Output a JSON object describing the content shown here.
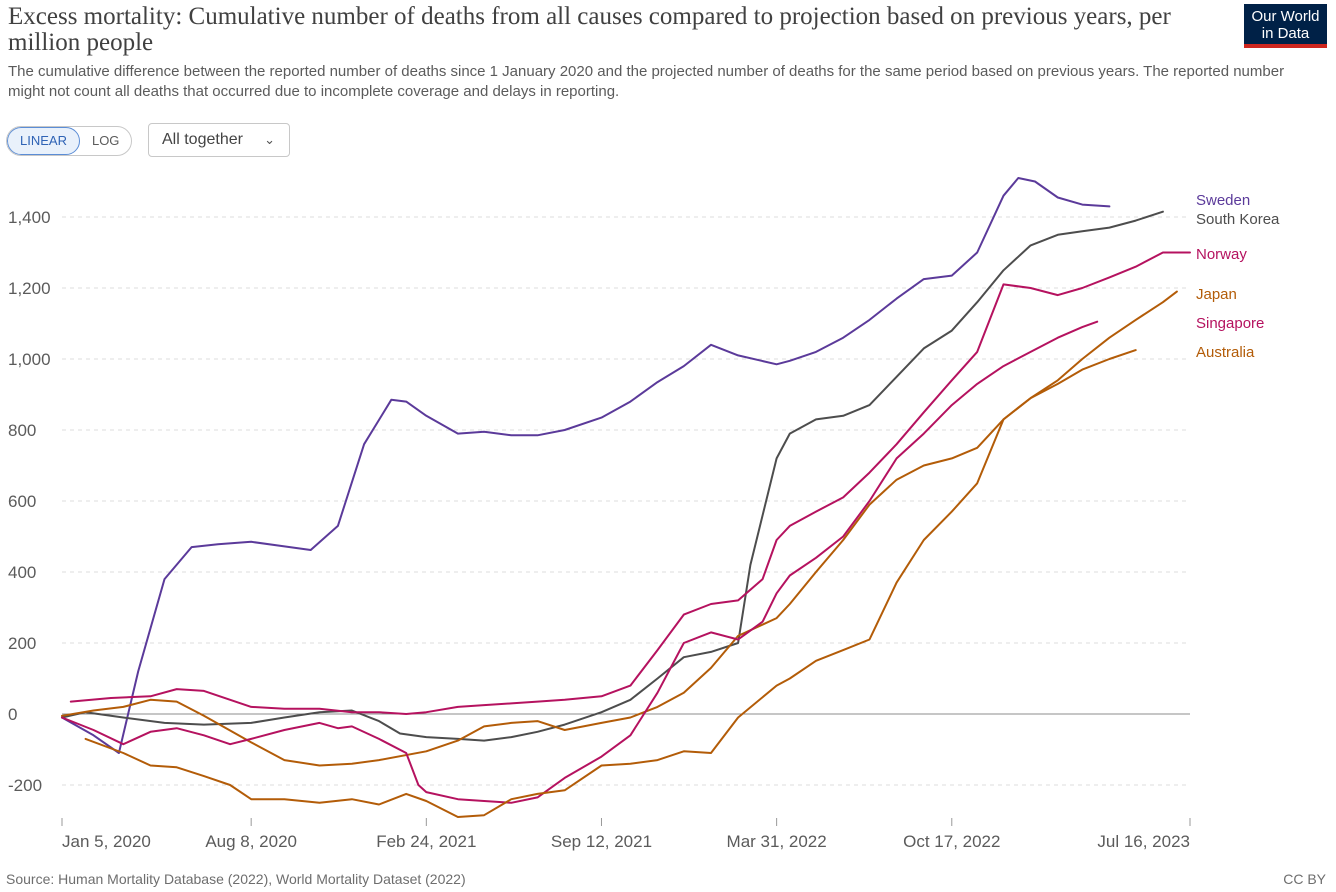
{
  "header": {
    "title": "Excess mortality: Cumulative number of deaths from all causes compared to projection based on previous years, per million people",
    "subtitle": "The cumulative difference between the reported number of deaths since 1 January 2020 and the projected number of deaths for the same period based on previous years. The reported number might not count all deaths that occurred due to incomplete coverage and delays in reporting.",
    "logo_line1": "Our World",
    "logo_line2": "in Data"
  },
  "controls": {
    "linear_label": "LINEAR",
    "log_label": "LOG",
    "dropdown_label": "All together"
  },
  "footer": {
    "source": "Source: Human Mortality Database (2022), World Mortality Dataset (2022)",
    "license": "CC BY"
  },
  "chart_data": {
    "type": "line",
    "x_ticks": [
      "Jan 5, 2020",
      "Aug 8, 2020",
      "Feb 24, 2021",
      "Sep 12, 2021",
      "Mar 31, 2022",
      "Oct 17, 2022",
      "Jul 16, 2023"
    ],
    "y_ticks": [
      -200,
      0,
      200,
      400,
      600,
      800,
      "1,000",
      "1,200",
      "1,400"
    ],
    "ylim": [
      -300,
      1550
    ],
    "xlim": [
      "2020-01-01",
      "2023-07-16"
    ],
    "grid": true,
    "legend_placement": "right, labels at line ends",
    "series": [
      {
        "name": "Sweden",
        "color": "#5b3a9a",
        "points": [
          [
            "2020-01-05",
            -10
          ],
          [
            "2020-02-10",
            -60
          ],
          [
            "2020-03-10",
            -110
          ],
          [
            "2020-04-01",
            120
          ],
          [
            "2020-05-01",
            380
          ],
          [
            "2020-06-01",
            470
          ],
          [
            "2020-07-01",
            478
          ],
          [
            "2020-08-08",
            485
          ],
          [
            "2020-09-15",
            472
          ],
          [
            "2020-10-15",
            462
          ],
          [
            "2020-11-15",
            530
          ],
          [
            "2020-12-15",
            760
          ],
          [
            "2021-01-15",
            885
          ],
          [
            "2021-02-01",
            880
          ],
          [
            "2021-02-24",
            840
          ],
          [
            "2021-04-01",
            790
          ],
          [
            "2021-05-01",
            795
          ],
          [
            "2021-06-01",
            785
          ],
          [
            "2021-07-01",
            785
          ],
          [
            "2021-08-01",
            800
          ],
          [
            "2021-09-12",
            835
          ],
          [
            "2021-10-15",
            880
          ],
          [
            "2021-11-15",
            935
          ],
          [
            "2021-12-15",
            980
          ],
          [
            "2022-01-15",
            1040
          ],
          [
            "2022-02-15",
            1010
          ],
          [
            "2022-03-31",
            985
          ],
          [
            "2022-04-15",
            995
          ],
          [
            "2022-05-15",
            1020
          ],
          [
            "2022-06-15",
            1060
          ],
          [
            "2022-07-15",
            1110
          ],
          [
            "2022-08-15",
            1170
          ],
          [
            "2022-09-15",
            1225
          ],
          [
            "2022-10-17",
            1235
          ],
          [
            "2022-11-15",
            1300
          ],
          [
            "2022-12-15",
            1460
          ],
          [
            "2023-01-01",
            1510
          ],
          [
            "2023-01-20",
            1500
          ],
          [
            "2023-02-15",
            1455
          ],
          [
            "2023-03-15",
            1435
          ],
          [
            "2023-04-15",
            1430
          ]
        ]
      },
      {
        "name": "South Korea",
        "color": "#4d4d4d",
        "points": [
          [
            "2020-01-05",
            -10
          ],
          [
            "2020-02-01",
            5
          ],
          [
            "2020-03-15",
            -10
          ],
          [
            "2020-05-01",
            -25
          ],
          [
            "2020-06-15",
            -30
          ],
          [
            "2020-08-08",
            -25
          ],
          [
            "2020-09-15",
            -10
          ],
          [
            "2020-10-25",
            5
          ],
          [
            "2020-12-01",
            10
          ],
          [
            "2021-01-01",
            -20
          ],
          [
            "2021-01-25",
            -55
          ],
          [
            "2021-02-24",
            -65
          ],
          [
            "2021-04-01",
            -70
          ],
          [
            "2021-05-01",
            -75
          ],
          [
            "2021-06-01",
            -65
          ],
          [
            "2021-07-01",
            -50
          ],
          [
            "2021-08-01",
            -30
          ],
          [
            "2021-09-12",
            5
          ],
          [
            "2021-10-15",
            40
          ],
          [
            "2021-11-15",
            100
          ],
          [
            "2021-12-15",
            160
          ],
          [
            "2022-01-15",
            175
          ],
          [
            "2022-02-15",
            200
          ],
          [
            "2022-03-01",
            420
          ],
          [
            "2022-03-31",
            720
          ],
          [
            "2022-04-15",
            790
          ],
          [
            "2022-05-15",
            830
          ],
          [
            "2022-06-15",
            840
          ],
          [
            "2022-07-15",
            870
          ],
          [
            "2022-08-15",
            950
          ],
          [
            "2022-09-15",
            1030
          ],
          [
            "2022-10-17",
            1080
          ],
          [
            "2022-11-15",
            1160
          ],
          [
            "2022-12-15",
            1250
          ],
          [
            "2023-01-15",
            1320
          ],
          [
            "2023-02-15",
            1350
          ],
          [
            "2023-03-15",
            1360
          ],
          [
            "2023-04-15",
            1370
          ],
          [
            "2023-05-15",
            1390
          ],
          [
            "2023-06-15",
            1415
          ]
        ]
      },
      {
        "name": "Norway",
        "color": "#b5125f",
        "points": [
          [
            "2020-01-15",
            35
          ],
          [
            "2020-03-01",
            45
          ],
          [
            "2020-04-15",
            50
          ],
          [
            "2020-05-15",
            70
          ],
          [
            "2020-06-15",
            65
          ],
          [
            "2020-08-08",
            20
          ],
          [
            "2020-09-15",
            15
          ],
          [
            "2020-10-25",
            15
          ],
          [
            "2020-12-01",
            5
          ],
          [
            "2021-01-01",
            5
          ],
          [
            "2021-02-01",
            0
          ],
          [
            "2021-02-24",
            5
          ],
          [
            "2021-04-01",
            20
          ],
          [
            "2021-05-01",
            25
          ],
          [
            "2021-06-01",
            30
          ],
          [
            "2021-07-01",
            35
          ],
          [
            "2021-08-01",
            40
          ],
          [
            "2021-09-12",
            50
          ],
          [
            "2021-10-15",
            80
          ],
          [
            "2021-11-15",
            180
          ],
          [
            "2021-12-15",
            280
          ],
          [
            "2022-01-15",
            310
          ],
          [
            "2022-02-15",
            320
          ],
          [
            "2022-03-15",
            380
          ],
          [
            "2022-03-31",
            490
          ],
          [
            "2022-04-15",
            530
          ],
          [
            "2022-05-15",
            570
          ],
          [
            "2022-06-15",
            610
          ],
          [
            "2022-07-15",
            680
          ],
          [
            "2022-08-15",
            760
          ],
          [
            "2022-09-15",
            850
          ],
          [
            "2022-10-17",
            940
          ],
          [
            "2022-11-15",
            1020
          ],
          [
            "2022-12-15",
            1210
          ],
          [
            "2023-01-15",
            1200
          ],
          [
            "2023-02-15",
            1180
          ],
          [
            "2023-03-15",
            1200
          ],
          [
            "2023-04-15",
            1230
          ],
          [
            "2023-05-15",
            1260
          ],
          [
            "2023-06-15",
            1300
          ],
          [
            "2023-07-16",
            1300
          ]
        ]
      },
      {
        "name": "Japan",
        "color": "#b35c08",
        "points": [
          [
            "2020-01-05",
            -5
          ],
          [
            "2020-02-10",
            10
          ],
          [
            "2020-03-15",
            20
          ],
          [
            "2020-04-15",
            40
          ],
          [
            "2020-05-15",
            35
          ],
          [
            "2020-06-15",
            -5
          ],
          [
            "2020-08-08",
            -80
          ],
          [
            "2020-09-15",
            -130
          ],
          [
            "2020-10-25",
            -145
          ],
          [
            "2020-12-01",
            -140
          ],
          [
            "2021-01-01",
            -130
          ],
          [
            "2021-02-24",
            -105
          ],
          [
            "2021-04-01",
            -75
          ],
          [
            "2021-05-01",
            -35
          ],
          [
            "2021-06-01",
            -25
          ],
          [
            "2021-07-01",
            -20
          ],
          [
            "2021-08-01",
            -45
          ],
          [
            "2021-09-12",
            -25
          ],
          [
            "2021-10-15",
            -10
          ],
          [
            "2021-11-15",
            20
          ],
          [
            "2021-12-15",
            60
          ],
          [
            "2022-01-15",
            130
          ],
          [
            "2022-02-15",
            220
          ],
          [
            "2022-03-31",
            270
          ],
          [
            "2022-04-15",
            310
          ],
          [
            "2022-05-15",
            400
          ],
          [
            "2022-06-15",
            490
          ],
          [
            "2022-07-15",
            590
          ],
          [
            "2022-08-15",
            660
          ],
          [
            "2022-09-15",
            700
          ],
          [
            "2022-10-17",
            720
          ],
          [
            "2022-11-15",
            750
          ],
          [
            "2022-12-15",
            830
          ],
          [
            "2023-01-15",
            890
          ],
          [
            "2023-02-15",
            940
          ],
          [
            "2023-03-15",
            1000
          ],
          [
            "2023-04-15",
            1060
          ],
          [
            "2023-05-15",
            1110
          ],
          [
            "2023-06-15",
            1160
          ],
          [
            "2023-07-01",
            1190
          ]
        ]
      },
      {
        "name": "Singapore",
        "color": "#b5125f",
        "points": [
          [
            "2020-01-05",
            -10
          ],
          [
            "2020-02-10",
            -45
          ],
          [
            "2020-03-15",
            -85
          ],
          [
            "2020-04-15",
            -50
          ],
          [
            "2020-05-15",
            -40
          ],
          [
            "2020-06-15",
            -60
          ],
          [
            "2020-07-15",
            -85
          ],
          [
            "2020-08-08",
            -70
          ],
          [
            "2020-09-15",
            -45
          ],
          [
            "2020-10-25",
            -25
          ],
          [
            "2020-11-15",
            -40
          ],
          [
            "2020-12-01",
            -35
          ],
          [
            "2021-01-01",
            -70
          ],
          [
            "2021-02-01",
            -110
          ],
          [
            "2021-02-15",
            -200
          ],
          [
            "2021-02-24",
            -220
          ],
          [
            "2021-04-01",
            -240
          ],
          [
            "2021-05-01",
            -245
          ],
          [
            "2021-06-01",
            -250
          ],
          [
            "2021-07-01",
            -235
          ],
          [
            "2021-08-01",
            -180
          ],
          [
            "2021-09-12",
            -120
          ],
          [
            "2021-10-15",
            -60
          ],
          [
            "2021-11-15",
            60
          ],
          [
            "2021-12-15",
            200
          ],
          [
            "2022-01-15",
            230
          ],
          [
            "2022-02-15",
            210
          ],
          [
            "2022-03-15",
            260
          ],
          [
            "2022-03-31",
            340
          ],
          [
            "2022-04-15",
            390
          ],
          [
            "2022-05-15",
            440
          ],
          [
            "2022-06-15",
            500
          ],
          [
            "2022-07-15",
            600
          ],
          [
            "2022-08-15",
            720
          ],
          [
            "2022-09-15",
            790
          ],
          [
            "2022-10-17",
            870
          ],
          [
            "2022-11-15",
            930
          ],
          [
            "2022-12-15",
            980
          ],
          [
            "2023-01-15",
            1020
          ],
          [
            "2023-02-15",
            1060
          ],
          [
            "2023-03-15",
            1090
          ],
          [
            "2023-04-01",
            1105
          ]
        ]
      },
      {
        "name": "Australia",
        "color": "#b35c08",
        "points": [
          [
            "2020-02-01",
            -70
          ],
          [
            "2020-03-15",
            -110
          ],
          [
            "2020-04-15",
            -145
          ],
          [
            "2020-05-15",
            -150
          ],
          [
            "2020-06-15",
            -175
          ],
          [
            "2020-07-15",
            -200
          ],
          [
            "2020-08-08",
            -240
          ],
          [
            "2020-09-15",
            -240
          ],
          [
            "2020-10-25",
            -250
          ],
          [
            "2020-12-01",
            -240
          ],
          [
            "2021-01-01",
            -255
          ],
          [
            "2021-02-01",
            -225
          ],
          [
            "2021-02-24",
            -245
          ],
          [
            "2021-04-01",
            -290
          ],
          [
            "2021-05-01",
            -285
          ],
          [
            "2021-06-01",
            -240
          ],
          [
            "2021-07-01",
            -225
          ],
          [
            "2021-08-01",
            -215
          ],
          [
            "2021-09-12",
            -145
          ],
          [
            "2021-10-15",
            -140
          ],
          [
            "2021-11-15",
            -130
          ],
          [
            "2021-12-15",
            -105
          ],
          [
            "2022-01-15",
            -110
          ],
          [
            "2022-02-15",
            -10
          ],
          [
            "2022-03-31",
            80
          ],
          [
            "2022-04-15",
            100
          ],
          [
            "2022-05-15",
            150
          ],
          [
            "2022-06-15",
            180
          ],
          [
            "2022-07-15",
            210
          ],
          [
            "2022-08-15",
            370
          ],
          [
            "2022-09-15",
            490
          ],
          [
            "2022-10-17",
            570
          ],
          [
            "2022-11-15",
            650
          ],
          [
            "2022-12-15",
            830
          ],
          [
            "2023-01-15",
            890
          ],
          [
            "2023-02-15",
            930
          ],
          [
            "2023-03-15",
            970
          ],
          [
            "2023-04-15",
            1000
          ],
          [
            "2023-05-15",
            1025
          ]
        ]
      }
    ]
  }
}
